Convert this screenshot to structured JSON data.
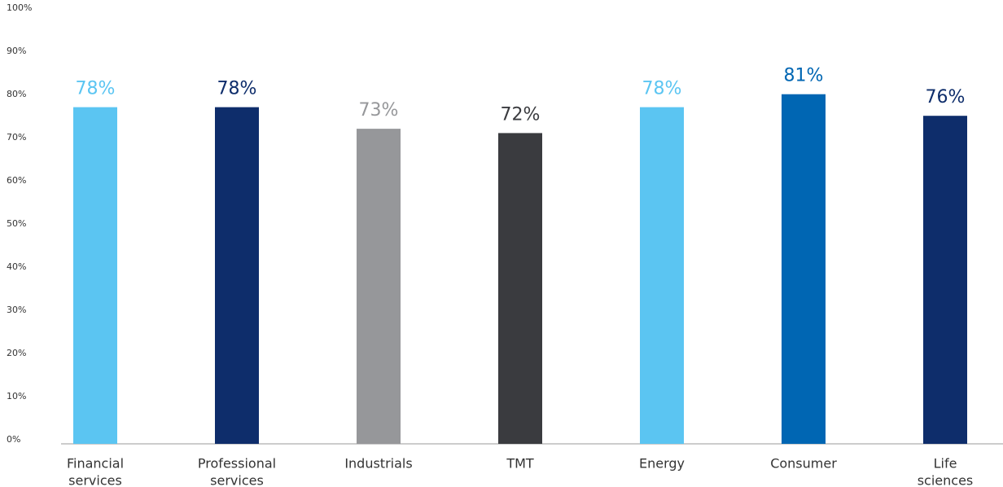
{
  "chart_data": {
    "type": "bar",
    "categories": [
      [
        "Financial",
        "services"
      ],
      [
        "Professional",
        "services"
      ],
      [
        "Industrials"
      ],
      [
        "TMT"
      ],
      [
        "Energy"
      ],
      [
        "Consumer"
      ],
      [
        "Life",
        "sciences"
      ]
    ],
    "values": [
      78,
      78,
      73,
      72,
      78,
      81,
      76
    ],
    "value_labels": [
      "78%",
      "78%",
      "73%",
      "72%",
      "78%",
      "81%",
      "76%"
    ],
    "colors": [
      "#5bc5f2",
      "#0e2d6b",
      "#96979a",
      "#3a3b3f",
      "#5bc5f2",
      "#0066b3",
      "#0e2d6b"
    ],
    "ylim": [
      0,
      100
    ],
    "yticks": [
      {
        "value": 0,
        "label": "0%"
      },
      {
        "value": 10,
        "label": "10%"
      },
      {
        "value": 20,
        "label": "20%"
      },
      {
        "value": 30,
        "label": "30%"
      },
      {
        "value": 40,
        "label": "40%"
      },
      {
        "value": 50,
        "label": "50%"
      },
      {
        "value": 60,
        "label": "60%"
      },
      {
        "value": 70,
        "label": "70%"
      },
      {
        "value": 80,
        "label": "80%"
      },
      {
        "value": 90,
        "label": "90%"
      },
      {
        "value": 100,
        "label": "100%"
      }
    ],
    "grid": false
  }
}
